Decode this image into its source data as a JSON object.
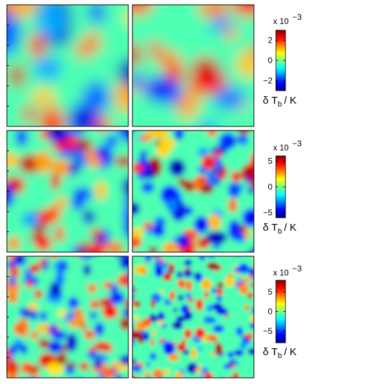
{
  "chart_data": [
    {
      "type": "heatmap",
      "row": 1,
      "panels": 2,
      "colormap": "jet",
      "colorbar": {
        "clim": [
          -3,
          3
        ],
        "ticks": [
          2,
          0,
          -2
        ],
        "tick_labels": [
          "2",
          "0",
          "−2"
        ],
        "multiplier_base": "x 10",
        "multiplier_exp": "−3",
        "label_main": "δ T",
        "label_sub": "b",
        "label_unit": "/ K"
      }
    },
    {
      "type": "heatmap",
      "row": 2,
      "panels": 2,
      "colormap": "jet",
      "colorbar": {
        "clim": [
          -6,
          6
        ],
        "ticks": [
          5,
          0,
          -5
        ],
        "tick_labels": [
          "5",
          "0",
          "−5"
        ],
        "multiplier_base": "x 10",
        "multiplier_exp": "−3",
        "label_main": "δ T",
        "label_sub": "b",
        "label_unit": "/ K"
      }
    },
    {
      "type": "heatmap",
      "row": 3,
      "panels": 2,
      "colormap": "jet",
      "colorbar": {
        "clim": [
          -8,
          8
        ],
        "ticks": [
          5,
          0,
          -5
        ],
        "tick_labels": [
          "5",
          "0",
          "−5"
        ],
        "multiplier_base": "x 10",
        "multiplier_exp": "−3",
        "label_main": "δ T",
        "label_sub": "b",
        "label_unit": "/ K"
      }
    }
  ]
}
